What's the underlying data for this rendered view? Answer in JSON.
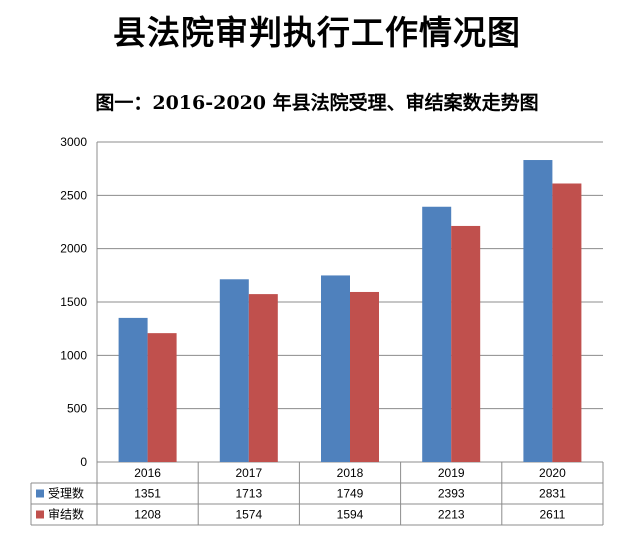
{
  "page": {
    "title": "县法院审判执行工作情况图",
    "subtitle": "图一：2016-2020 年县法院受理、审结案数走势图"
  },
  "chart_data": {
    "type": "bar",
    "title": "图一：2016-2020 年县法院受理、审结案数走势图",
    "categories": [
      "2016",
      "2017",
      "2018",
      "2019",
      "2020"
    ],
    "series": [
      {
        "name": "受理数",
        "values": [
          1351,
          1713,
          1749,
          2393,
          2831
        ],
        "color": "#4f81bd"
      },
      {
        "name": "审结数",
        "values": [
          1208,
          1574,
          1594,
          2213,
          2611
        ],
        "color": "#c0504d"
      }
    ],
    "ylim": [
      0,
      3000
    ],
    "yticks": [
      0,
      500,
      1000,
      1500,
      2000,
      2500,
      3000
    ],
    "grid": true,
    "legend": "data-table-left",
    "xlabel": "",
    "ylabel": ""
  }
}
